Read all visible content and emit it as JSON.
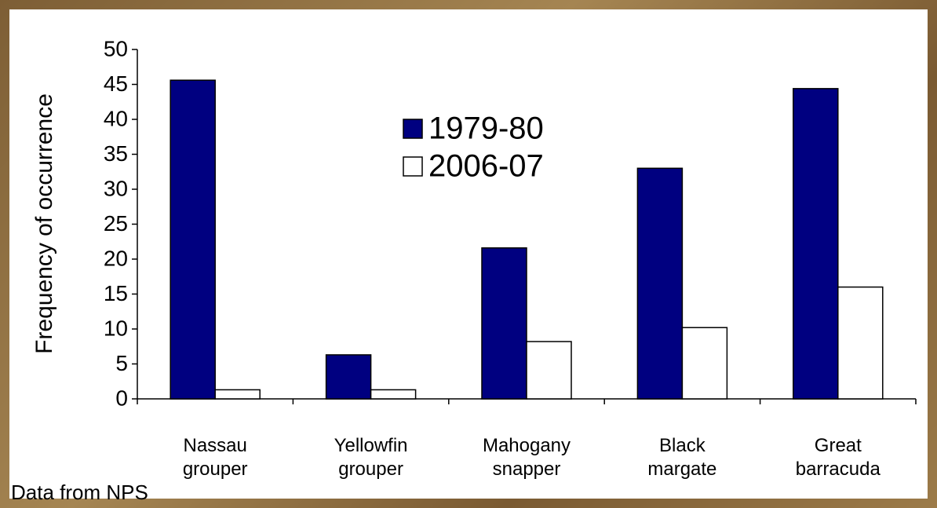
{
  "chart_data": {
    "type": "bar",
    "y_label": "Frequency of occurrence",
    "categories": [
      "Nassau\ngrouper",
      "Yellowfin\ngrouper",
      "Mahogany\nsnapper",
      "Black\nmargate",
      "Great\nbarracuda"
    ],
    "series": [
      {
        "name": "1979-80",
        "color": "#000080",
        "values": [
          45.6,
          6.3,
          21.6,
          33.0,
          44.4
        ]
      },
      {
        "name": "2006-07",
        "color": "#ffffff",
        "values": [
          1.3,
          1.3,
          8.2,
          10.2,
          16.0
        ]
      }
    ],
    "ylim": [
      0,
      50
    ],
    "yticks": [
      0,
      5,
      10,
      15,
      20,
      25,
      30,
      35,
      40,
      45,
      50
    ],
    "annotation": "Data from NPS"
  }
}
